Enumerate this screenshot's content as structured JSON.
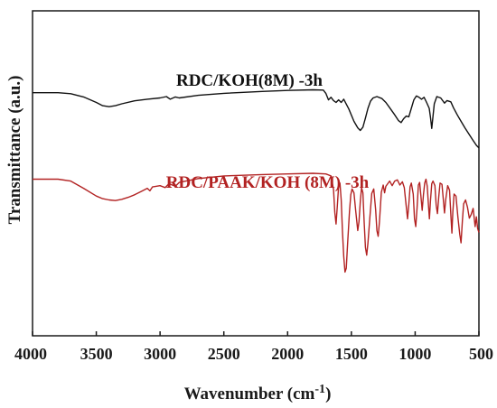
{
  "chart_data": {
    "type": "line",
    "xlabel": "Wavenumber (cm",
    "xlabel_sup": "-1",
    "xlabel_close": ")",
    "ylabel": "Transmittance (a.u.)",
    "xlim": [
      4000,
      500
    ],
    "x_reversed": true,
    "x_ticks": [
      "4000",
      "3500",
      "3000",
      "2500",
      "2000",
      "1500",
      "1000",
      "500"
    ],
    "y_ticks_shown": false,
    "grid": false,
    "series": [
      {
        "name": "RDC/KOH(8M) -3h",
        "color": "#111111",
        "points": [
          [
            4000,
            74.8
          ],
          [
            3800,
            74.8
          ],
          [
            3700,
            74.5
          ],
          [
            3600,
            73.5
          ],
          [
            3500,
            71.8
          ],
          [
            3450,
            70.8
          ],
          [
            3400,
            70.5
          ],
          [
            3350,
            70.8
          ],
          [
            3300,
            71.4
          ],
          [
            3200,
            72.3
          ],
          [
            3100,
            72.8
          ],
          [
            3000,
            73.2
          ],
          [
            2950,
            73.6
          ],
          [
            2920,
            72.8
          ],
          [
            2880,
            73.5
          ],
          [
            2850,
            73.2
          ],
          [
            2700,
            74.0
          ],
          [
            2500,
            74.6
          ],
          [
            2200,
            75.2
          ],
          [
            2000,
            75.5
          ],
          [
            1800,
            75.7
          ],
          [
            1720,
            75.6
          ],
          [
            1700,
            74.6
          ],
          [
            1680,
            72.6
          ],
          [
            1660,
            73.4
          ],
          [
            1640,
            72.4
          ],
          [
            1620,
            71.8
          ],
          [
            1600,
            72.6
          ],
          [
            1580,
            71.8
          ],
          [
            1560,
            72.8
          ],
          [
            1520,
            69.8
          ],
          [
            1480,
            66.0
          ],
          [
            1450,
            64.0
          ],
          [
            1430,
            63.2
          ],
          [
            1410,
            64.2
          ],
          [
            1390,
            67.0
          ],
          [
            1370,
            70.0
          ],
          [
            1350,
            72.2
          ],
          [
            1330,
            73.2
          ],
          [
            1300,
            73.6
          ],
          [
            1260,
            73.0
          ],
          [
            1230,
            71.8
          ],
          [
            1200,
            70.2
          ],
          [
            1160,
            68.0
          ],
          [
            1130,
            66.2
          ],
          [
            1110,
            65.6
          ],
          [
            1090,
            66.8
          ],
          [
            1070,
            67.6
          ],
          [
            1050,
            67.4
          ],
          [
            1030,
            70.0
          ],
          [
            1010,
            72.6
          ],
          [
            990,
            73.8
          ],
          [
            970,
            73.4
          ],
          [
            950,
            72.8
          ],
          [
            930,
            73.4
          ],
          [
            910,
            71.8
          ],
          [
            890,
            70.0
          ],
          [
            880,
            67.2
          ],
          [
            870,
            63.8
          ],
          [
            860,
            67.6
          ],
          [
            850,
            71.4
          ],
          [
            830,
            73.6
          ],
          [
            800,
            73.2
          ],
          [
            770,
            71.6
          ],
          [
            750,
            72.4
          ],
          [
            720,
            72.0
          ],
          [
            700,
            70.2
          ],
          [
            670,
            68.0
          ],
          [
            640,
            66.0
          ],
          [
            610,
            64.0
          ],
          [
            580,
            62.2
          ],
          [
            550,
            60.4
          ],
          [
            520,
            58.6
          ],
          [
            500,
            57.8
          ]
        ]
      },
      {
        "name": "RDC/PAAK/KOH (8M) -3h",
        "color": "#b22222",
        "points": [
          [
            4000,
            48.2
          ],
          [
            3800,
            48.2
          ],
          [
            3700,
            47.6
          ],
          [
            3600,
            45.4
          ],
          [
            3500,
            43.0
          ],
          [
            3450,
            42.2
          ],
          [
            3400,
            41.8
          ],
          [
            3350,
            41.6
          ],
          [
            3300,
            42.0
          ],
          [
            3250,
            42.6
          ],
          [
            3200,
            43.4
          ],
          [
            3150,
            44.4
          ],
          [
            3100,
            45.4
          ],
          [
            3080,
            44.6
          ],
          [
            3060,
            45.8
          ],
          [
            3000,
            46.2
          ],
          [
            2960,
            45.6
          ],
          [
            2930,
            46.8
          ],
          [
            2880,
            46.0
          ],
          [
            2850,
            47.2
          ],
          [
            2700,
            48.4
          ],
          [
            2500,
            49.2
          ],
          [
            2200,
            49.6
          ],
          [
            2000,
            49.8
          ],
          [
            1800,
            50.0
          ],
          [
            1700,
            49.8
          ],
          [
            1660,
            49.2
          ],
          [
            1640,
            45.0
          ],
          [
            1630,
            38.0
          ],
          [
            1620,
            34.4
          ],
          [
            1610,
            40.0
          ],
          [
            1600,
            46.0
          ],
          [
            1590,
            47.0
          ],
          [
            1580,
            41.8
          ],
          [
            1570,
            32.0
          ],
          [
            1560,
            24.4
          ],
          [
            1550,
            19.6
          ],
          [
            1540,
            20.8
          ],
          [
            1530,
            28.0
          ],
          [
            1515,
            38.0
          ],
          [
            1505,
            43.4
          ],
          [
            1495,
            45.2
          ],
          [
            1480,
            44.0
          ],
          [
            1465,
            38.0
          ],
          [
            1450,
            32.4
          ],
          [
            1440,
            35.2
          ],
          [
            1430,
            41.2
          ],
          [
            1420,
            45.6
          ],
          [
            1410,
            44.0
          ],
          [
            1400,
            35.0
          ],
          [
            1390,
            27.2
          ],
          [
            1380,
            24.8
          ],
          [
            1370,
            28.6
          ],
          [
            1355,
            36.4
          ],
          [
            1340,
            43.8
          ],
          [
            1325,
            45.2
          ],
          [
            1310,
            38.8
          ],
          [
            1300,
            32.4
          ],
          [
            1290,
            30.6
          ],
          [
            1280,
            35.0
          ],
          [
            1265,
            44.2
          ],
          [
            1250,
            46.4
          ],
          [
            1240,
            44.0
          ],
          [
            1230,
            46.0
          ],
          [
            1200,
            47.6
          ],
          [
            1180,
            46.2
          ],
          [
            1160,
            47.6
          ],
          [
            1140,
            48.0
          ],
          [
            1120,
            46.4
          ],
          [
            1100,
            47.4
          ],
          [
            1085,
            45.6
          ],
          [
            1070,
            40.0
          ],
          [
            1060,
            36.0
          ],
          [
            1050,
            40.4
          ],
          [
            1040,
            45.8
          ],
          [
            1030,
            47.0
          ],
          [
            1015,
            43.6
          ],
          [
            1005,
            36.0
          ],
          [
            995,
            33.6
          ],
          [
            985,
            39.2
          ],
          [
            975,
            46.4
          ],
          [
            965,
            47.2
          ],
          [
            955,
            43.0
          ],
          [
            945,
            38.6
          ],
          [
            935,
            43.4
          ],
          [
            925,
            47.0
          ],
          [
            915,
            48.2
          ],
          [
            905,
            46.0
          ],
          [
            895,
            40.0
          ],
          [
            888,
            36.0
          ],
          [
            880,
            41.6
          ],
          [
            870,
            46.8
          ],
          [
            860,
            47.6
          ],
          [
            845,
            46.2
          ],
          [
            835,
            40.2
          ],
          [
            825,
            37.6
          ],
          [
            815,
            42.6
          ],
          [
            805,
            47.0
          ],
          [
            790,
            46.6
          ],
          [
            780,
            42.2
          ],
          [
            770,
            37.8
          ],
          [
            760,
            42.0
          ],
          [
            745,
            46.2
          ],
          [
            730,
            44.8
          ],
          [
            720,
            37.4
          ],
          [
            712,
            31.6
          ],
          [
            705,
            38.0
          ],
          [
            695,
            43.6
          ],
          [
            680,
            43.0
          ],
          [
            665,
            36.6
          ],
          [
            650,
            31.2
          ],
          [
            640,
            28.6
          ],
          [
            630,
            35.4
          ],
          [
            620,
            40.6
          ],
          [
            605,
            41.8
          ],
          [
            590,
            39.6
          ],
          [
            575,
            36.2
          ],
          [
            560,
            37.4
          ],
          [
            545,
            39.2
          ],
          [
            530,
            33.6
          ],
          [
            520,
            36.6
          ],
          [
            510,
            33.0
          ],
          [
            500,
            31.8
          ]
        ]
      }
    ]
  }
}
